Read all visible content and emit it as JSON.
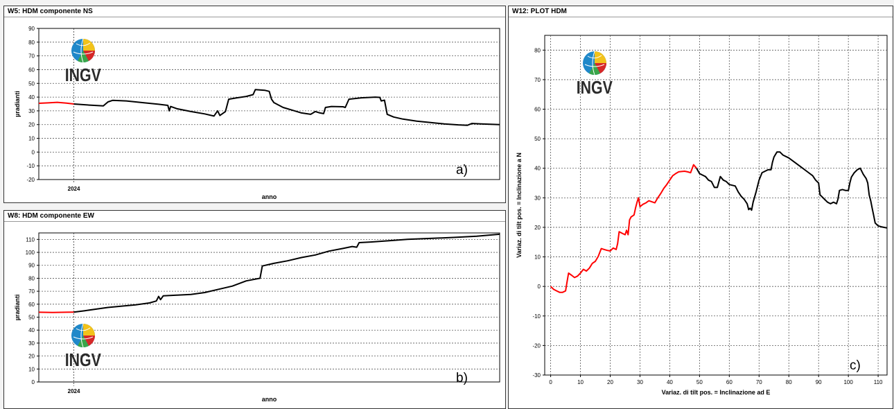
{
  "colors": {
    "recent": "#ff0000",
    "older": "#000000",
    "grid": "#555555"
  },
  "logo": {
    "text": "INGV",
    "icon": "ingv-globe-icon"
  },
  "chart_data": [
    {
      "id": "ns",
      "panel_title": "W5: HDM componente NS",
      "type": "line",
      "xlabel": "anno",
      "ylabel": "µradianti",
      "ylim": [
        -20,
        90
      ],
      "yticks": [
        -20,
        -10,
        0,
        10,
        20,
        30,
        40,
        50,
        60,
        70,
        80,
        90
      ],
      "xtick_labels": [
        "2024"
      ],
      "xlim": [
        0,
        100
      ],
      "xtick_positions": [
        7.6
      ],
      "annotation": "a)",
      "series": [
        {
          "color": "#ff0000",
          "points": [
            [
              0,
              35.5
            ],
            [
              2,
              35.8
            ],
            [
              4,
              36.2
            ],
            [
              6,
              35.6
            ],
            [
              7.6,
              35.0
            ]
          ]
        },
        {
          "color": "#000000",
          "points": [
            [
              7.6,
              35.0
            ],
            [
              11,
              34.2
            ],
            [
              14,
              33.6
            ],
            [
              15,
              36.5
            ],
            [
              16,
              37.6
            ],
            [
              19,
              37.2
            ],
            [
              23,
              35.8
            ],
            [
              26,
              34.8
            ],
            [
              28,
              34.0
            ],
            [
              28.3,
              30
            ],
            [
              28.6,
              33.2
            ],
            [
              30,
              31.5
            ],
            [
              33,
              29.5
            ],
            [
              36,
              27.8
            ],
            [
              38,
              26.2
            ],
            [
              38.8,
              30
            ],
            [
              39.3,
              26.6
            ],
            [
              40.5,
              29.5
            ],
            [
              41.2,
              38.5
            ],
            [
              43,
              39.5
            ],
            [
              45,
              40.5
            ],
            [
              46.5,
              41.8
            ],
            [
              47,
              45.5
            ],
            [
              49,
              45.0
            ],
            [
              50,
              44.2
            ],
            [
              50.5,
              38.5
            ],
            [
              51,
              36.0
            ],
            [
              53,
              32.5
            ],
            [
              55,
              30.5
            ],
            [
              57,
              28.5
            ],
            [
              59,
              27.5
            ],
            [
              60,
              29.5
            ],
            [
              61,
              28.5
            ],
            [
              61.8,
              28.0
            ],
            [
              62.2,
              32.5
            ],
            [
              63.5,
              33.2
            ],
            [
              66,
              33.0
            ],
            [
              66.5,
              32.5
            ],
            [
              67.3,
              38.5
            ],
            [
              70,
              39.5
            ],
            [
              73,
              40.0
            ],
            [
              74,
              39.8
            ],
            [
              74.3,
              37.2
            ],
            [
              75,
              37.8
            ],
            [
              75.6,
              27.5
            ],
            [
              77,
              25.5
            ],
            [
              79,
              24.0
            ],
            [
              82,
              22.5
            ],
            [
              85,
              21.5
            ],
            [
              88,
              20.5
            ],
            [
              91,
              19.8
            ],
            [
              93,
              19.5
            ],
            [
              94,
              20.8
            ],
            [
              96,
              20.5
            ],
            [
              98,
              20.2
            ],
            [
              100,
              20.0
            ]
          ]
        }
      ]
    },
    {
      "id": "ew",
      "panel_title": "W8: HDM componente EW",
      "type": "line",
      "xlabel": "anno",
      "ylabel": "µradianti",
      "ylim": [
        0,
        115
      ],
      "yticks": [
        0,
        10,
        20,
        30,
        40,
        50,
        60,
        70,
        80,
        90,
        100,
        110
      ],
      "xtick_labels": [
        "2024"
      ],
      "xlim": [
        0,
        100
      ],
      "xtick_positions": [
        7.6
      ],
      "annotation": "b)",
      "series": [
        {
          "color": "#ff0000",
          "points": [
            [
              0,
              53.8
            ],
            [
              3,
              53.6
            ],
            [
              6,
              53.8
            ],
            [
              7.6,
              53.9
            ]
          ]
        },
        {
          "color": "#000000",
          "points": [
            [
              7.6,
              53.9
            ],
            [
              10,
              55
            ],
            [
              13,
              56.5
            ],
            [
              15,
              57.5
            ],
            [
              18,
              58.5
            ],
            [
              21,
              59.5
            ],
            [
              24,
              61
            ],
            [
              25.5,
              62.5
            ],
            [
              26,
              66
            ],
            [
              26.4,
              63.5
            ],
            [
              27,
              66.5
            ],
            [
              30,
              67
            ],
            [
              33,
              67.5
            ],
            [
              36,
              69
            ],
            [
              39,
              71.5
            ],
            [
              42,
              74
            ],
            [
              45,
              78
            ],
            [
              48,
              80
            ],
            [
              48.5,
              89.5
            ],
            [
              51,
              91.5
            ],
            [
              54,
              93.5
            ],
            [
              57,
              96
            ],
            [
              60,
              98
            ],
            [
              63,
              101
            ],
            [
              66,
              103
            ],
            [
              68,
              104.5
            ],
            [
              69,
              104
            ],
            [
              69.5,
              107.5
            ],
            [
              72,
              108
            ],
            [
              76,
              109
            ],
            [
              80,
              110
            ],
            [
              85,
              110.8
            ],
            [
              90,
              111.5
            ],
            [
              95,
              112.5
            ],
            [
              100,
              114
            ]
          ]
        }
      ]
    },
    {
      "id": "plot",
      "panel_title": "W12: PLOT HDM",
      "type": "line",
      "xlabel": "Variaz. di tilt pos. = Inclinazione ad E",
      "ylabel": "Variaz. di tilt pos. = Inclinazione a N",
      "xlim": [
        -2,
        113
      ],
      "ylim": [
        -30,
        85
      ],
      "xticks": [
        0,
        10,
        20,
        30,
        40,
        50,
        60,
        70,
        80,
        90,
        100,
        110
      ],
      "yticks": [
        -30,
        -20,
        -10,
        0,
        10,
        20,
        30,
        40,
        50,
        60,
        70,
        80
      ],
      "annotation": "c)",
      "series": [
        {
          "color": "#ff0000",
          "points": [
            [
              0,
              0
            ],
            [
              1,
              -1
            ],
            [
              2,
              -1.5
            ],
            [
              3,
              -2
            ],
            [
              4,
              -2
            ],
            [
              5,
              -1.5
            ],
            [
              5.5,
              1.5
            ],
            [
              6,
              4.5
            ],
            [
              7,
              3.8
            ],
            [
              8,
              3
            ],
            [
              9,
              3.5
            ],
            [
              10,
              4.5
            ],
            [
              11,
              5.8
            ],
            [
              12,
              5.2
            ],
            [
              13,
              6.2
            ],
            [
              14,
              7.8
            ],
            [
              15,
              8.5
            ],
            [
              16,
              10.2
            ],
            [
              17,
              12.8
            ],
            [
              18,
              12.5
            ],
            [
              19,
              12.2
            ],
            [
              20,
              12
            ],
            [
              21,
              13
            ],
            [
              22,
              12.5
            ],
            [
              22.5,
              14.5
            ],
            [
              23,
              18.5
            ],
            [
              24,
              18
            ],
            [
              25,
              17.5
            ],
            [
              25.5,
              19
            ],
            [
              26,
              17.5
            ],
            [
              26.5,
              22.5
            ],
            [
              27,
              23.5
            ],
            [
              28,
              24.2
            ],
            [
              28.5,
              26.5
            ],
            [
              29,
              28.5
            ],
            [
              29.5,
              30
            ],
            [
              30,
              27
            ],
            [
              31,
              27.8
            ],
            [
              32,
              28.3
            ],
            [
              33,
              29
            ],
            [
              35,
              28.3
            ],
            [
              36,
              30
            ],
            [
              37,
              31.5
            ],
            [
              38,
              33.2
            ],
            [
              39,
              34.5
            ],
            [
              40,
              36
            ],
            [
              41,
              37.5
            ],
            [
              42,
              38.2
            ],
            [
              43,
              38.8
            ],
            [
              44,
              38.9
            ],
            [
              45,
              39
            ],
            [
              46,
              38.8
            ],
            [
              47,
              38.5
            ],
            [
              48,
              41.2
            ],
            [
              49,
              40
            ]
          ]
        },
        {
          "color": "#000000",
          "points": [
            [
              49,
              40
            ],
            [
              50,
              38.2
            ],
            [
              52,
              37.2
            ],
            [
              53,
              36
            ],
            [
              54,
              35.5
            ],
            [
              55,
              33.5
            ],
            [
              56,
              33.5
            ],
            [
              57,
              37.2
            ],
            [
              58,
              36
            ],
            [
              59,
              35.5
            ],
            [
              60,
              34.5
            ],
            [
              62,
              34
            ],
            [
              63,
              32
            ],
            [
              64,
              30.5
            ],
            [
              65,
              29.5
            ],
            [
              66,
              28
            ],
            [
              66.5,
              26
            ],
            [
              67,
              26.5
            ],
            [
              67.5,
              25.8
            ],
            [
              68,
              28.5
            ],
            [
              69,
              32
            ],
            [
              70,
              36
            ],
            [
              71,
              38.5
            ],
            [
              72,
              39
            ],
            [
              73,
              39.5
            ],
            [
              74,
              39.5
            ],
            [
              74.5,
              42
            ],
            [
              75,
              43.8
            ],
            [
              76,
              45.5
            ],
            [
              77,
              45.5
            ],
            [
              78,
              44.5
            ],
            [
              80,
              43.5
            ],
            [
              82,
              42
            ],
            [
              84,
              40.5
            ],
            [
              86,
              39
            ],
            [
              88,
              37.5
            ],
            [
              89,
              36
            ],
            [
              90,
              35
            ],
            [
              90.5,
              31
            ],
            [
              91,
              30.5
            ],
            [
              92,
              29.5
            ],
            [
              93,
              28.5
            ],
            [
              94,
              28
            ],
            [
              95,
              28.5
            ],
            [
              96,
              28
            ],
            [
              96.5,
              29.5
            ],
            [
              97,
              32.5
            ],
            [
              98,
              32.8
            ],
            [
              99,
              32.5
            ],
            [
              100,
              32.5
            ],
            [
              100.5,
              35
            ],
            [
              101,
              37
            ],
            [
              102,
              38.5
            ],
            [
              103,
              39.5
            ],
            [
              104,
              40
            ],
            [
              105,
              38
            ],
            [
              106,
              36.5
            ],
            [
              106.5,
              35
            ],
            [
              107,
              31
            ],
            [
              107.5,
              29
            ],
            [
              108,
              26.5
            ],
            [
              108.5,
              24
            ],
            [
              109,
              21.5
            ],
            [
              110,
              20.5
            ],
            [
              111,
              20.2
            ],
            [
              112,
              20
            ],
            [
              113,
              19.8
            ]
          ]
        }
      ]
    }
  ]
}
